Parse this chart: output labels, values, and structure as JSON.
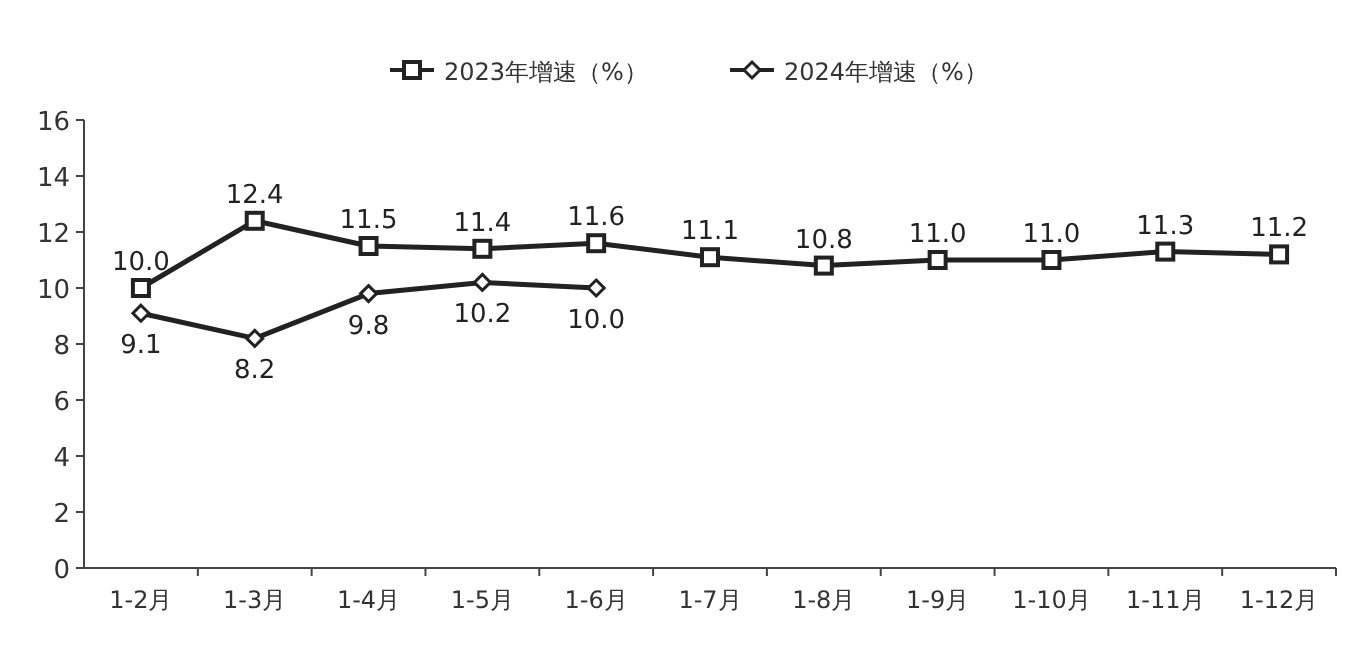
{
  "chart_data": {
    "type": "line",
    "categories": [
      "1-2月",
      "1-3月",
      "1-4月",
      "1-5月",
      "1-6月",
      "1-7月",
      "1-8月",
      "1-9月",
      "1-10月",
      "1-11月",
      "1-12月"
    ],
    "series": [
      {
        "name": "2023年增速（%）",
        "color": "#222222",
        "marker": "square",
        "values": [
          10.0,
          12.4,
          11.5,
          11.4,
          11.6,
          11.1,
          10.8,
          11.0,
          11.0,
          11.3,
          11.2
        ],
        "value_labels": [
          "10.0",
          "12.4",
          "11.5",
          "11.4",
          "11.6",
          "11.1",
          "10.8",
          "11.0",
          "11.0",
          "11.3",
          "11.2"
        ]
      },
      {
        "name": "2024年增速（%）",
        "color": "#222222",
        "marker": "diamond",
        "values": [
          9.1,
          8.2,
          9.8,
          10.2,
          10.0,
          null,
          null,
          null,
          null,
          null,
          null
        ],
        "value_labels": [
          "9.1",
          "8.2",
          "9.8",
          "10.2",
          "10.0",
          null,
          null,
          null,
          null,
          null,
          null
        ]
      }
    ],
    "ylim": [
      0,
      16
    ],
    "yticks": [
      0,
      2,
      4,
      6,
      8,
      10,
      12,
      14,
      16
    ],
    "grid": false,
    "legend": "top"
  }
}
